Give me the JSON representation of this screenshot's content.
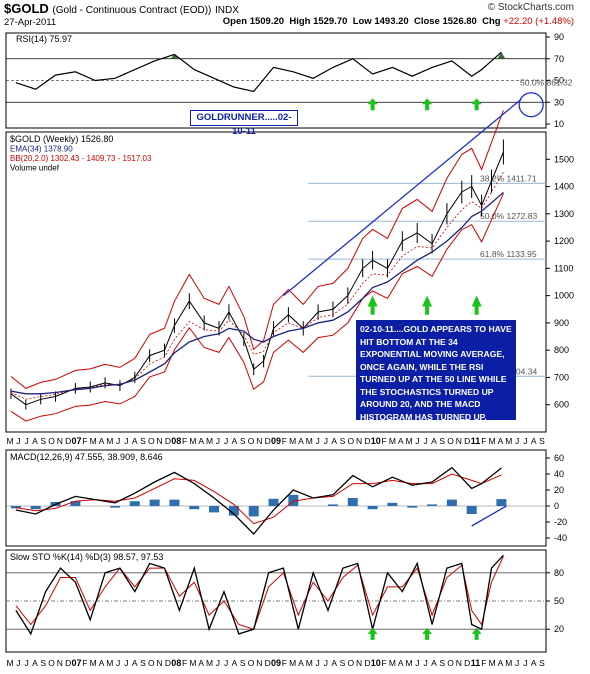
{
  "header": {
    "symbol": "$GOLD",
    "description": "(Gold - Continuous Contract (EOD))",
    "exchange": "INDX",
    "date": "27-Apr-2011",
    "brand": "© StockCharts.com",
    "open_label": "Open",
    "open": "1509.20",
    "high_label": "High",
    "high": "1529.70",
    "low_label": "Low",
    "low": "1493.20",
    "close_label": "Close",
    "close": "1526.80",
    "chg_label": "Chg",
    "chg": "+22.20 (+1.48%)"
  },
  "annotations": {
    "runner": "GOLDRUNNER.....02-10-11",
    "note": "02-10-11....GOLD APPEARS TO HAVE HIT BOTTOM AT THE 34 EXPONENTIAL MOVING AVERAGE, ONCE AGAIN, WHILE THE RSI TURNED UP AT THE 50 LINE WHILE THE STOCHASTICS TURNED UP AROUND 20, AND THE MACD HISTOGRAM HAS TURNED UP."
  },
  "chart_data": [
    {
      "type": "line",
      "panel": "rsi",
      "legend": [
        "RSI(14) 75.97"
      ],
      "y_ticks": [
        10,
        30,
        50,
        70,
        90
      ],
      "ylim": [
        10,
        90
      ],
      "reference_lines": [
        70,
        50,
        30
      ],
      "value_right": "75.97",
      "fib_label": "50.0% 861.32",
      "x": [
        2006.4,
        2006.6,
        2006.8,
        2007.0,
        2007.2,
        2007.4,
        2007.6,
        2007.8,
        2008.0,
        2008.2,
        2008.4,
        2008.6,
        2008.8,
        2009.0,
        2009.2,
        2009.4,
        2009.6,
        2009.8,
        2010.0,
        2010.2,
        2010.4,
        2010.6,
        2010.8,
        2011.0,
        2011.1,
        2011.3
      ],
      "values": [
        48,
        42,
        55,
        58,
        50,
        52,
        60,
        68,
        74,
        60,
        52,
        44,
        40,
        62,
        58,
        52,
        62,
        70,
        56,
        62,
        54,
        62,
        68,
        54,
        60,
        76
      ]
    },
    {
      "type": "line",
      "panel": "price",
      "legend": [
        "$GOLD (Weekly) 1526.80",
        "EMA(34) 1378.90",
        "BB(20,2.0) 1302.43 - 1409.73 - 1517.03",
        "Volume undef"
      ],
      "y_ticks": [
        600,
        700,
        800,
        900,
        1000,
        1100,
        1200,
        1300,
        1400,
        1500
      ],
      "ylim": [
        500,
        1600
      ],
      "x_labels": [
        "M",
        "J",
        "J",
        "A",
        "S",
        "O",
        "N",
        "D",
        "07",
        "F",
        "M",
        "A",
        "M",
        "J",
        "J",
        "A",
        "S",
        "O",
        "N",
        "D",
        "08",
        "F",
        "M",
        "A",
        "M",
        "J",
        "J",
        "A",
        "S",
        "O",
        "N",
        "D",
        "09",
        "F",
        "M",
        "A",
        "M",
        "J",
        "J",
        "A",
        "S",
        "O",
        "N",
        "D",
        "10",
        "F",
        "M",
        "A",
        "M",
        "J",
        "J",
        "A",
        "S",
        "O",
        "N",
        "D",
        "11",
        "F",
        "M",
        "A",
        "M",
        "J",
        "J",
        "A",
        "S"
      ],
      "fib_levels": [
        {
          "label": "38.2% 1411.71",
          "value": 1411.71
        },
        {
          "label": "50.0% 1272.83",
          "value": 1272.83
        },
        {
          "label": "61.8% 1133.95",
          "value": 1133.95
        },
        {
          "label": "100.0% 704.34",
          "value": 704.34
        }
      ],
      "x": [
        2006.35,
        2006.5,
        2006.65,
        2006.8,
        2007.0,
        2007.15,
        2007.3,
        2007.45,
        2007.6,
        2007.75,
        2007.9,
        2008.0,
        2008.15,
        2008.3,
        2008.45,
        2008.55,
        2008.7,
        2008.8,
        2008.9,
        2009.0,
        2009.15,
        2009.3,
        2009.45,
        2009.6,
        2009.75,
        2009.9,
        2010.0,
        2010.15,
        2010.3,
        2010.45,
        2010.6,
        2010.75,
        2010.9,
        2011.0,
        2011.1,
        2011.2,
        2011.32
      ],
      "values": [
        640,
        600,
        620,
        630,
        660,
        665,
        680,
        670,
        700,
        780,
        800,
        890,
        980,
        900,
        880,
        940,
        840,
        730,
        760,
        880,
        930,
        880,
        940,
        950,
        1000,
        1100,
        1130,
        1100,
        1200,
        1230,
        1190,
        1300,
        1380,
        1400,
        1330,
        1420,
        1526.8
      ],
      "ema": [
        650,
        640,
        640,
        645,
        655,
        660,
        670,
        675,
        690,
        720,
        750,
        790,
        830,
        850,
        860,
        880,
        870,
        840,
        830,
        850,
        870,
        880,
        900,
        910,
        940,
        990,
        1030,
        1050,
        1090,
        1130,
        1160,
        1200,
        1250,
        1290,
        1310,
        1340,
        1378.9
      ]
    },
    {
      "type": "line",
      "panel": "macd",
      "legend": [
        "MACD(12,26,9) 47.555, 38.909, 8.646"
      ],
      "y_ticks": [
        -40,
        -20,
        0,
        20,
        40,
        60
      ],
      "ylim": [
        -45,
        65
      ],
      "x": [
        2006.4,
        2006.6,
        2006.8,
        2007.0,
        2007.2,
        2007.4,
        2007.6,
        2007.8,
        2008.0,
        2008.2,
        2008.4,
        2008.6,
        2008.8,
        2009.0,
        2009.2,
        2009.4,
        2009.6,
        2009.8,
        2010.0,
        2010.2,
        2010.4,
        2010.6,
        2010.8,
        2011.0,
        2011.1,
        2011.3
      ],
      "macd": [
        -5,
        -10,
        2,
        12,
        8,
        4,
        16,
        30,
        42,
        28,
        10,
        -10,
        -35,
        -5,
        20,
        10,
        14,
        38,
        24,
        36,
        26,
        30,
        48,
        22,
        28,
        47.555
      ],
      "signal": [
        -2,
        -6,
        -3,
        6,
        8,
        6,
        10,
        22,
        34,
        32,
        18,
        2,
        -22,
        -14,
        6,
        10,
        12,
        28,
        28,
        32,
        28,
        28,
        40,
        32,
        28,
        38.909
      ],
      "histogram": [
        -3,
        -4,
        5,
        6,
        0,
        -2,
        6,
        8,
        8,
        -4,
        -8,
        -12,
        -13,
        9,
        14,
        0,
        2,
        10,
        -4,
        4,
        -2,
        2,
        8,
        -10,
        0,
        8.646
      ]
    },
    {
      "type": "line",
      "panel": "stochastics",
      "legend": [
        "Slow STO %K(14) %D(3) 98.57, 97.53"
      ],
      "y_ticks": [
        20,
        50,
        80
      ],
      "ylim": [
        0,
        100
      ],
      "reference_lines": [
        80,
        50,
        20
      ],
      "x": [
        2006.4,
        2006.55,
        2006.7,
        2006.85,
        2007.0,
        2007.15,
        2007.3,
        2007.45,
        2007.6,
        2007.75,
        2007.9,
        2008.05,
        2008.2,
        2008.35,
        2008.5,
        2008.65,
        2008.8,
        2008.95,
        2009.1,
        2009.25,
        2009.4,
        2009.55,
        2009.7,
        2009.85,
        2010.0,
        2010.15,
        2010.3,
        2010.45,
        2010.6,
        2010.75,
        2010.9,
        2011.0,
        2011.1,
        2011.2,
        2011.32
      ],
      "k": [
        40,
        15,
        60,
        85,
        70,
        30,
        80,
        85,
        60,
        90,
        85,
        40,
        85,
        20,
        60,
        15,
        20,
        80,
        85,
        20,
        80,
        40,
        85,
        90,
        20,
        80,
        60,
        90,
        25,
        85,
        90,
        25,
        20,
        85,
        98.57
      ],
      "d": [
        45,
        25,
        45,
        75,
        75,
        40,
        65,
        85,
        65,
        85,
        85,
        55,
        70,
        35,
        50,
        25,
        20,
        65,
        80,
        35,
        70,
        50,
        75,
        88,
        35,
        65,
        65,
        85,
        35,
        75,
        88,
        40,
        25,
        70,
        97.53
      ]
    }
  ]
}
